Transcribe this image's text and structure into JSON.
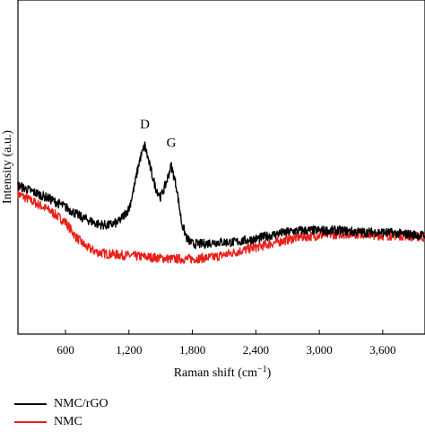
{
  "chart_data": {
    "type": "line",
    "title": "",
    "xlabel": "Raman shift (cm",
    "xlabel_sup": "−1",
    "xlabel_close": ")",
    "ylabel": "Intensity (a.u.)",
    "xlim": [
      150,
      4000
    ],
    "ylim": [
      0,
      1
    ],
    "x_ticks": [
      600,
      1200,
      1800,
      2400,
      3000,
      3600
    ],
    "x_tick_labels": [
      "600",
      "1,200",
      "1,800",
      "2,400",
      "3,000",
      "3,600"
    ],
    "y_ticks_shown": false,
    "legend_position": "bottom-left",
    "annotations": [
      {
        "text": "D",
        "x": 1350,
        "y": 0.615
      },
      {
        "text": "G",
        "x": 1600,
        "y": 0.56
      }
    ],
    "series": [
      {
        "name": "NMC/rGO",
        "color": "#000000",
        "x": [
          150,
          300,
          450,
          600,
          750,
          900,
          1000,
          1100,
          1200,
          1250,
          1300,
          1350,
          1400,
          1450,
          1500,
          1550,
          1600,
          1650,
          1700,
          1750,
          1800,
          1900,
          2000,
          2200,
          2400,
          2600,
          2800,
          3000,
          3200,
          3400,
          3600,
          3800,
          4000
        ],
        "values": [
          0.445,
          0.425,
          0.405,
          0.38,
          0.35,
          0.33,
          0.325,
          0.335,
          0.375,
          0.44,
          0.52,
          0.565,
          0.5,
          0.44,
          0.41,
          0.45,
          0.505,
          0.44,
          0.33,
          0.285,
          0.27,
          0.27,
          0.275,
          0.275,
          0.285,
          0.3,
          0.31,
          0.31,
          0.31,
          0.305,
          0.305,
          0.3,
          0.295
        ]
      },
      {
        "name": "NMC",
        "color": "#e8211a",
        "x": [
          150,
          300,
          450,
          600,
          700,
          800,
          900,
          1000,
          1200,
          1400,
          1600,
          1800,
          2000,
          2200,
          2400,
          2600,
          2800,
          3000,
          3200,
          3400,
          3600,
          3800,
          4000
        ],
        "values": [
          0.42,
          0.395,
          0.37,
          0.335,
          0.29,
          0.26,
          0.245,
          0.24,
          0.235,
          0.23,
          0.225,
          0.225,
          0.23,
          0.245,
          0.26,
          0.275,
          0.29,
          0.295,
          0.3,
          0.3,
          0.295,
          0.295,
          0.29
        ]
      }
    ]
  }
}
